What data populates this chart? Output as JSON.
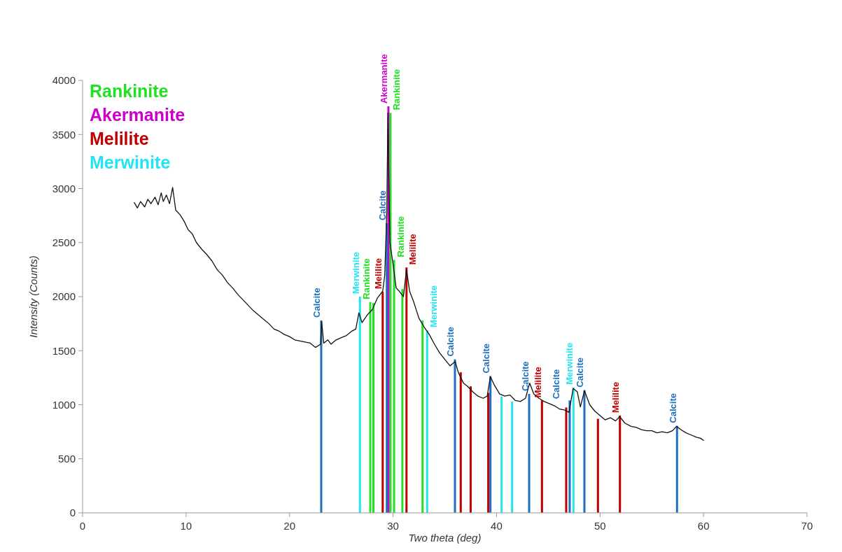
{
  "chart_data": {
    "type": "bar",
    "xlabel": "Two theta (deg)",
    "ylabel": "Intensity (Counts)",
    "xlim": [
      0,
      70
    ],
    "xticks": [
      0,
      10,
      20,
      30,
      40,
      50,
      60,
      70
    ],
    "ylim": [
      0,
      4000
    ],
    "yticks": [
      0,
      500,
      1000,
      1500,
      2000,
      2500,
      3000,
      3500,
      4000
    ],
    "grid": false,
    "legend": "top left",
    "marker": "none",
    "series": [
      {
        "type": "line",
        "color": "#111111",
        "line_style": "solid",
        "x": [
          5,
          5.3,
          5.6,
          6,
          6.3,
          6.6,
          7,
          7.3,
          7.6,
          7.8,
          8.1,
          8.4,
          8.7,
          9,
          9.4,
          9.8,
          10.2,
          10.6,
          11,
          11.5,
          12,
          12.5,
          13,
          13.5,
          14,
          14.5,
          15,
          15.5,
          16,
          16.5,
          17,
          17.5,
          18,
          18.5,
          19,
          19.5,
          20,
          20.5,
          21,
          21.5,
          22,
          22.5,
          23,
          23.1,
          23.3,
          23.7,
          24,
          24.5,
          25,
          25.5,
          26,
          26.4,
          26.7,
          27,
          27.5,
          28,
          28.5,
          29,
          29.2,
          29.4,
          29.5,
          29.7,
          30,
          30.3,
          30.6,
          31,
          31.3,
          31.6,
          32,
          32.5,
          33,
          33.5,
          34,
          34.5,
          35,
          35.5,
          36,
          36.3,
          36.8,
          37.2,
          37.7,
          38.2,
          38.7,
          39.1,
          39.4,
          39.8,
          40.3,
          40.8,
          41.3,
          41.8,
          42.3,
          42.8,
          43.2,
          43.6,
          44.1,
          44.6,
          45.1,
          45.6,
          46.1,
          46.6,
          47,
          47.4,
          47.8,
          48.1,
          48.5,
          49,
          49.5,
          50,
          50.5,
          51,
          51.5,
          51.9,
          52.4,
          53,
          53.5,
          54,
          54.5,
          55,
          55.5,
          56,
          56.5,
          57,
          57.4,
          57.8,
          58.3,
          58.8,
          59.3,
          59.7,
          60
        ],
        "values": [
          2870,
          2820,
          2880,
          2830,
          2900,
          2860,
          2920,
          2850,
          2960,
          2880,
          2940,
          2860,
          3010,
          2800,
          2760,
          2700,
          2620,
          2580,
          2500,
          2440,
          2390,
          2330,
          2250,
          2200,
          2130,
          2080,
          2020,
          1970,
          1920,
          1870,
          1830,
          1790,
          1750,
          1700,
          1680,
          1650,
          1630,
          1600,
          1590,
          1580,
          1570,
          1530,
          1560,
          1770,
          1570,
          1600,
          1560,
          1600,
          1620,
          1640,
          1680,
          1700,
          1850,
          1760,
          1830,
          1880,
          1990,
          2050,
          2200,
          2800,
          3700,
          2500,
          2300,
          2080,
          2050,
          2000,
          2250,
          2050,
          1950,
          1800,
          1720,
          1650,
          1560,
          1480,
          1420,
          1360,
          1400,
          1300,
          1200,
          1170,
          1120,
          1080,
          1060,
          1080,
          1260,
          1180,
          1100,
          1080,
          1090,
          1040,
          1030,
          1060,
          1200,
          1100,
          1060,
          1030,
          1010,
          990,
          960,
          950,
          930,
          1150,
          1120,
          980,
          1130,
          1000,
          940,
          900,
          860,
          880,
          850,
          890,
          830,
          800,
          790,
          770,
          760,
          760,
          740,
          750,
          740,
          760,
          800,
          770,
          740,
          720,
          700,
          690,
          670
        ]
      },
      {
        "name": "Rankinite",
        "color": "#22e022",
        "x": [
          27.8,
          28.1,
          29.75,
          30.1,
          30.9,
          32.85
        ],
        "values": [
          1950,
          1940,
          3700,
          2340,
          2070,
          1780
        ]
      },
      {
        "name": "Akermanite",
        "color": "#cc00cc",
        "x": [
          29.55
        ],
        "values": [
          3760
        ]
      },
      {
        "name": "Melilite",
        "color": "#c00000",
        "x": [
          29.0,
          31.3,
          36.54,
          37.5,
          39.2,
          44.39,
          46.73,
          49.8,
          51.92
        ],
        "values": [
          2045,
          2270,
          1300,
          1170,
          1110,
          1040,
          975,
          870,
          900
        ]
      },
      {
        "name": "Merwinite",
        "color": "#22e4f2",
        "x": [
          26.8,
          33.3,
          40.49,
          41.5,
          47.43
        ],
        "values": [
          2000,
          1690,
          1075,
          1030,
          1160
        ]
      },
      {
        "color": "#1f6fc0",
        "x": [
          23.06,
          29.4,
          35.98,
          39.41,
          43.15,
          47.07,
          48.49,
          57.44
        ],
        "values": [
          1780,
          2680,
          1420,
          1265,
          1100,
          1040,
          1135,
          805
        ]
      }
    ],
    "annotations": [
      {
        "text": "Calcite",
        "x": 23.06,
        "y": 1780
      },
      {
        "text": "Merwinite",
        "x": 26.8,
        "y": 2000
      },
      {
        "text": "Rankinite",
        "x": 27.8,
        "y": 1950
      },
      {
        "text": "Melilite",
        "x": 29.0,
        "y": 2045
      },
      {
        "text": "Calcite",
        "x": 29.4,
        "y": 2680
      },
      {
        "text": "Akermanite",
        "x": 29.55,
        "y": 3760
      },
      {
        "text": "Rankinite",
        "x": 29.75,
        "y": 3700
      },
      {
        "text": "Rankinite",
        "x": 30.1,
        "y": 2340
      },
      {
        "text": "Melilite",
        "x": 31.3,
        "y": 2270
      },
      {
        "text": "Merwinite",
        "x": 33.3,
        "y": 1690
      },
      {
        "text": "Calcite",
        "x": 35.98,
        "y": 1420
      },
      {
        "text": "Calcite",
        "x": 39.41,
        "y": 1265
      },
      {
        "text": "Calcite",
        "x": 43.15,
        "y": 1100
      },
      {
        "text": "Melilite",
        "x": 44.39,
        "y": 1040
      },
      {
        "text": "Calcite",
        "x": 47.07,
        "y": 1040
      },
      {
        "text": "Merwinite",
        "x": 47.43,
        "y": 1160
      },
      {
        "text": "Calcite",
        "x": 48.49,
        "y": 1135
      },
      {
        "text": "Melilite",
        "x": 51.92,
        "y": 900
      },
      {
        "text": "Calcite",
        "x": 57.44,
        "y": 805
      }
    ]
  }
}
